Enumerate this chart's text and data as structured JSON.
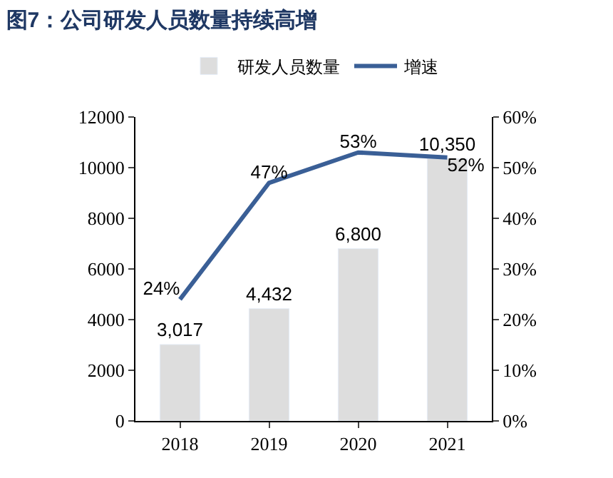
{
  "chart_data": {
    "type": "bar",
    "title": "图7：公司研发人员数量持续高增",
    "categories": [
      "2018",
      "2019",
      "2020",
      "2021"
    ],
    "series": [
      {
        "name": "研发人员数量",
        "color": "#dddddd",
        "values": [
          3017,
          4432,
          6800,
          10350
        ],
        "value_labels": [
          "3,017",
          "4,432",
          "6,800",
          "10,350"
        ]
      },
      {
        "name": "增速",
        "type": "line",
        "color": "#3a5f96",
        "axis": "y2",
        "values": [
          24,
          47,
          53,
          52
        ],
        "value_labels": [
          "24%",
          "47%",
          "53%",
          "52%"
        ]
      }
    ],
    "ylim": [
      0,
      12000
    ],
    "yticks": [
      0,
      2000,
      4000,
      6000,
      8000,
      10000,
      12000
    ],
    "y2lim": [
      0,
      60
    ],
    "y2ticks": [
      {
        "value": 0,
        "label": "0%"
      },
      {
        "value": 10,
        "label": "10%"
      },
      {
        "value": 20,
        "label": "20%"
      },
      {
        "value": 30,
        "label": "30%"
      },
      {
        "value": 40,
        "label": "40%"
      },
      {
        "value": 50,
        "label": "50%"
      },
      {
        "value": 60,
        "label": "60%"
      }
    ],
    "legend": "top",
    "marker": "none",
    "line_style": "solid"
  }
}
